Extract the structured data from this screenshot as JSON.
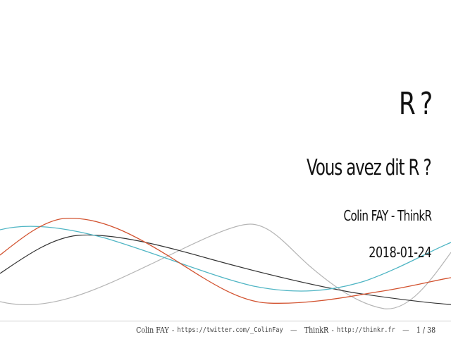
{
  "slide": {
    "title": "R ?",
    "subtitle": "Vous avez dit R ?",
    "author": "Colin FAY - ThinkR",
    "date": "2018-01-24"
  },
  "footer": {
    "author_name": "Colin FAY",
    "author_dash": "-",
    "author_url": "https://twitter.com/_ColinFay",
    "separator": "—",
    "company_name": "ThinkR",
    "company_dash": "-",
    "company_url": "http://thinkr.fr",
    "page_counter": "1 / 38"
  },
  "colors": {
    "wave_orange": "#d2522f",
    "wave_teal": "#4fb5c4",
    "wave_dark": "#333333",
    "wave_gray": "#b5b5b5",
    "text": "#111111",
    "footer_rule": "#cfcfcf"
  }
}
